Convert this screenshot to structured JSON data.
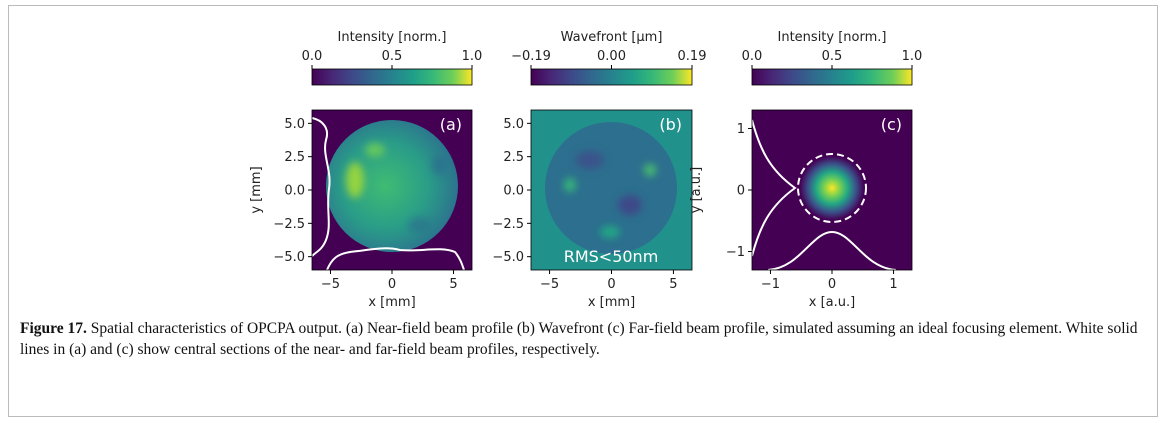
{
  "figure": {
    "panels": [
      {
        "colorbar": {
          "label": "Intensity [norm.]",
          "lim": [
            0,
            1
          ],
          "ticks": [
            {
              "value": 0,
              "label": "0.0"
            },
            {
              "value": 0.5,
              "label": "0.5"
            },
            {
              "value": 1,
              "label": "1.0"
            }
          ]
        },
        "xlabel": "x [mm]",
        "ylabel": "y [mm]",
        "xlim": [
          -6.5,
          6.5
        ],
        "ylim": [
          -6,
          6
        ],
        "xticks": [
          {
            "value": -5,
            "label": "−5"
          },
          0,
          5
        ],
        "yticks": [
          {
            "value": 5,
            "label": "5.0"
          },
          2.5,
          {
            "value": 0,
            "label": "0.0"
          },
          {
            "value": -2.5,
            "label": "−2.5"
          },
          {
            "value": -5,
            "label": "−5.0"
          }
        ],
        "annotations": [
          "(a)"
        ]
      },
      {
        "colorbar": {
          "label": "Wavefront [µm]",
          "lim": [
            -0.19,
            0.19
          ],
          "ticks": [
            {
              "value": -0.19,
              "label": "−0.19"
            },
            {
              "value": 0,
              "label": "0.00"
            },
            0.19
          ]
        },
        "xlabel": "x [mm]",
        "xlim": [
          -6.5,
          6.5
        ],
        "ylim": [
          -6,
          6
        ],
        "xticks": [
          {
            "value": -5,
            "label": "−5"
          },
          0,
          5
        ],
        "yticks": [
          {
            "value": 5,
            "label": "5.0"
          },
          2.5,
          {
            "value": 0,
            "label": "0.0"
          },
          {
            "value": -2.5,
            "label": "−2.5"
          },
          {
            "value": -5,
            "label": "−5.0"
          }
        ],
        "annotations": [
          "(b)",
          "RMS<50nm"
        ]
      },
      {
        "colorbar": {
          "label": "Intensity [norm.]",
          "lim": [
            0,
            1
          ],
          "ticks": [
            {
              "value": 0,
              "label": "0.0"
            },
            {
              "value": 0.5,
              "label": "0.5"
            },
            {
              "value": 1,
              "label": "1.0"
            }
          ]
        },
        "xlabel": "x [a.u.]",
        "ylabel": "y [a.u.]",
        "xlim": [
          -1.3,
          1.3
        ],
        "ylim": [
          -1.3,
          1.3
        ],
        "xticks": [
          {
            "value": -1,
            "label": "−1"
          },
          0,
          1
        ],
        "yticks": [
          1,
          0,
          {
            "value": -1,
            "label": "−1"
          }
        ],
        "annotations": [
          "(c)"
        ]
      }
    ],
    "caption": {
      "label": "Figure 17.",
      "text": "Spatial characteristics of OPCPA output. (a) Near-field beam profile (b) Wavefront (c) Far-field beam profile, simulated assuming an ideal focusing element. White solid lines in (a) and (c) show central sections of the near- and far-field beam profiles, respectively."
    }
  }
}
